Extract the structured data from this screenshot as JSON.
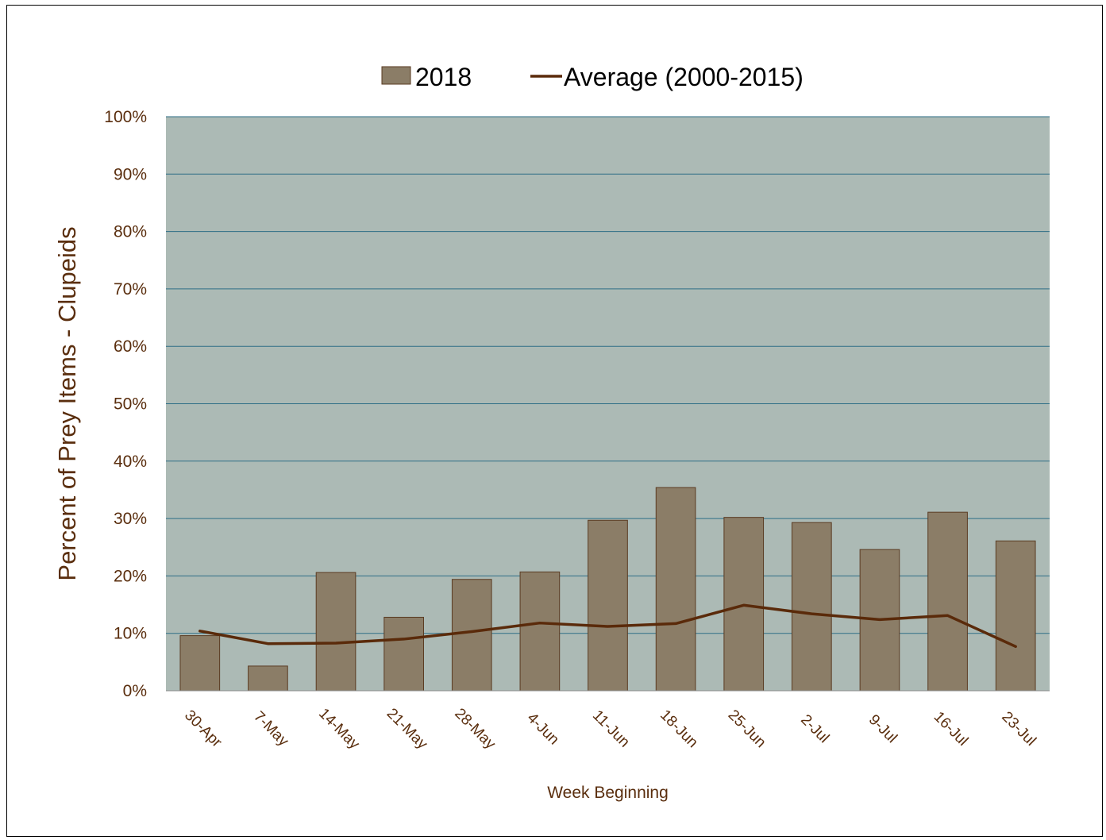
{
  "chart_data": {
    "type": "bar",
    "title": "",
    "xlabel": "Week Beginning",
    "ylabel": "Percent of Prey Items - Clupeids",
    "ylim": [
      0,
      100
    ],
    "yticks": [
      "0%",
      "10%",
      "20%",
      "30%",
      "40%",
      "50%",
      "60%",
      "70%",
      "80%",
      "90%",
      "100%"
    ],
    "categories": [
      "30-Apr",
      "7-May",
      "14-May",
      "21-May",
      "28-May",
      "4-Jun",
      "11-Jun",
      "18-Jun",
      "25-Jun",
      "2-Jul",
      "9-Jul",
      "16-Jul",
      "23-Jul"
    ],
    "series": [
      {
        "name": "2018",
        "type": "bar",
        "color": "#8b7d67",
        "values": [
          9.6,
          4.3,
          20.6,
          12.8,
          19.4,
          20.7,
          29.7,
          35.4,
          30.2,
          29.3,
          24.6,
          31.1,
          26.1
        ]
      },
      {
        "name": "Average (2000-2015)",
        "type": "line",
        "color": "#5a2a0a",
        "values": [
          10.4,
          8.2,
          8.3,
          9.0,
          10.3,
          11.8,
          11.2,
          11.7,
          14.9,
          13.4,
          12.4,
          13.1,
          7.7
        ]
      }
    ],
    "legend_position": "top-center",
    "grid": true,
    "plot_background": "#acbab5",
    "gridline_color": "#2e6e86"
  }
}
